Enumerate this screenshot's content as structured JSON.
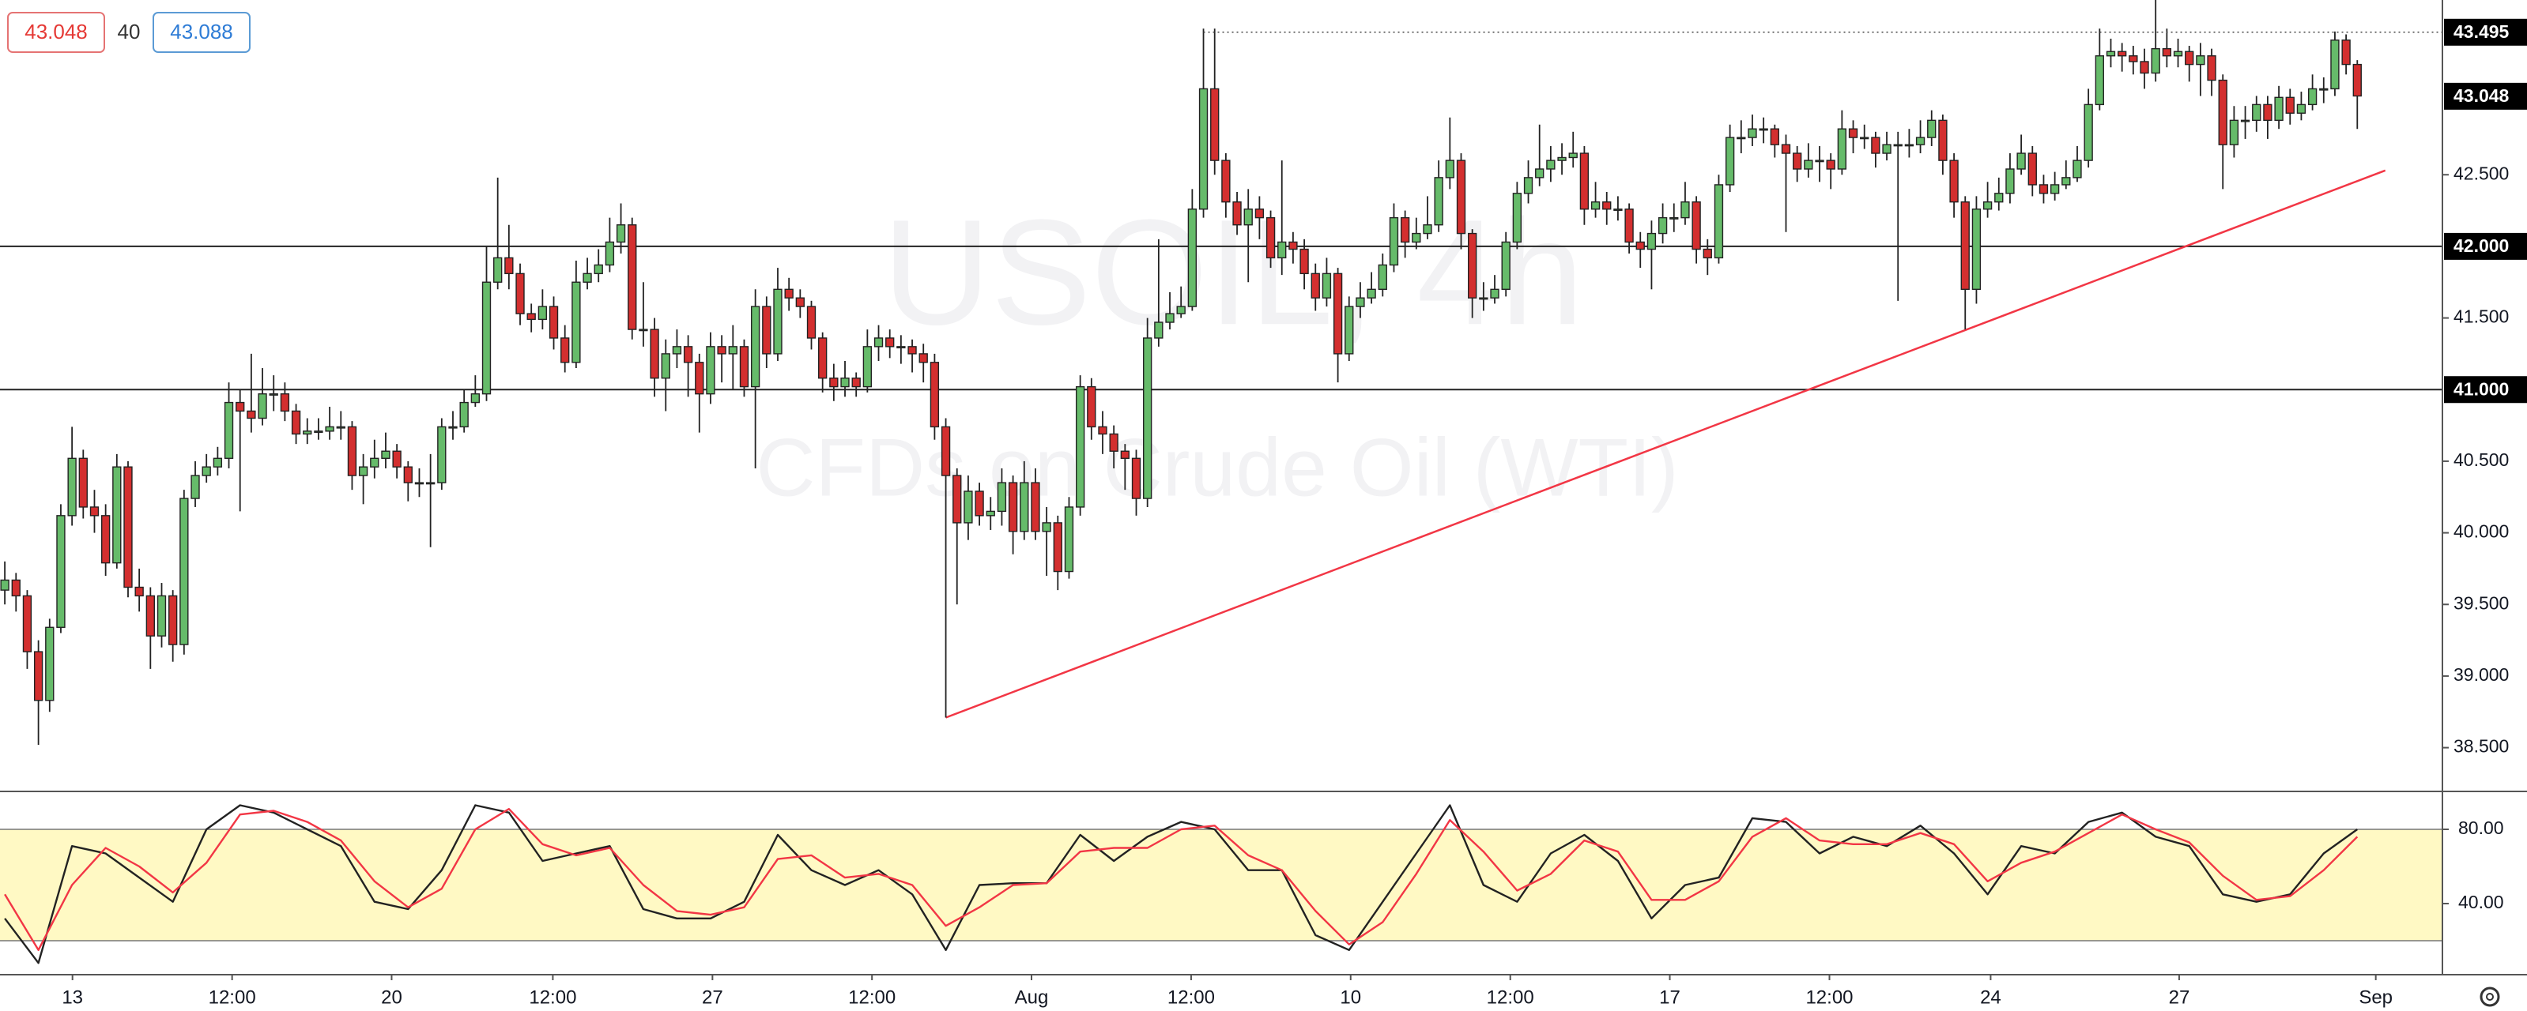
{
  "quote": {
    "bid": 43.048,
    "spread": 40,
    "ask": 43.088
  },
  "chart_data": [
    {
      "type": "candlestick",
      "watermark": "USOIL, 4h",
      "subtitle": "CFDs on Crude Oil (WTI)",
      "up_color": "#66bb6a",
      "down_color": "#d32f2f",
      "wick_color": "#222222",
      "xlim": [
        -0.43,
        217.6
      ],
      "ylim": [
        38.2,
        43.72
      ],
      "yticks": [
        {
          "value": 38.5,
          "label": "38.500"
        },
        {
          "value": 39,
          "label": "39.000"
        },
        {
          "value": 39.5,
          "label": "39.500"
        },
        {
          "value": 40,
          "label": "40.000"
        },
        {
          "value": 40.5,
          "label": "40.500"
        },
        {
          "value": 41.5,
          "label": "41.500"
        },
        {
          "value": 42.5,
          "label": "42.500"
        }
      ],
      "hlines": [
        {
          "value": 42,
          "label": "42.000"
        },
        {
          "value": 41,
          "label": "41.000"
        }
      ],
      "high_line": {
        "value": 43.495,
        "x_start": 107
      },
      "last_price": 43.048,
      "trendline": {
        "x": [
          84,
          212.5
        ],
        "values": [
          38.71,
          42.53
        ],
        "color": "#f23645"
      },
      "open": [
        39.6,
        39.67,
        39.56,
        39.17,
        38.83,
        39.34,
        40.12,
        40.52,
        40.18,
        40.12,
        39.79,
        40.46,
        39.62,
        39.56,
        39.28,
        39.56,
        39.22,
        40.24,
        40.4,
        40.46,
        40.52,
        40.91,
        40.85,
        40.8,
        40.97,
        40.97,
        40.85,
        40.69,
        40.71,
        40.71,
        40.74,
        40.74,
        40.4,
        40.46,
        40.52,
        40.57,
        40.46,
        40.35,
        40.35,
        40.35,
        40.74,
        40.74,
        40.91,
        40.97,
        41.75,
        41.92,
        41.81,
        41.53,
        41.49,
        41.58,
        41.36,
        41.19,
        41.75,
        41.81,
        41.87,
        42.03,
        42.15,
        41.42,
        41.42,
        41.08,
        41.25,
        41.3,
        41.19,
        40.97,
        41.3,
        41.25,
        41.3,
        41.02,
        41.58,
        41.25,
        41.7,
        41.64,
        41.58,
        41.36,
        41.08,
        41.02,
        41.08,
        41.02,
        41.3,
        41.36,
        41.3,
        41.3,
        41.25,
        41.19,
        40.74,
        40.4,
        40.07,
        40.29,
        40.12,
        40.15,
        40.35,
        40.01,
        40.35,
        40.01,
        40.07,
        39.73,
        40.18,
        41.02,
        40.74,
        40.69,
        40.57,
        40.52,
        40.24,
        41.36,
        41.47,
        41.53,
        41.58,
        42.26,
        43.1,
        42.6,
        42.31,
        42.15,
        42.26,
        42.2,
        41.92,
        42.03,
        41.98,
        41.81,
        41.64,
        41.81,
        41.25,
        41.58,
        41.64,
        41.7,
        41.87,
        42.2,
        42.03,
        42.09,
        42.15,
        42.48,
        42.6,
        42.09,
        41.64,
        41.64,
        41.7,
        42.03,
        42.37,
        42.48,
        42.54,
        42.6,
        42.62,
        42.65,
        42.26,
        42.31,
        42.26,
        42.26,
        42.03,
        41.98,
        42.09,
        42.2,
        42.2,
        42.31,
        41.98,
        41.92,
        42.43,
        42.76,
        42.76,
        42.82,
        42.82,
        42.71,
        42.65,
        42.54,
        42.6,
        42.6,
        42.54,
        42.82,
        42.76,
        42.76,
        42.65,
        42.71,
        42.71,
        42.71,
        42.76,
        42.88,
        42.6,
        42.31,
        41.7,
        42.26,
        42.31,
        42.37,
        42.54,
        42.65,
        42.43,
        42.37,
        42.43,
        42.48,
        42.6,
        42.99,
        43.33,
        43.36,
        43.33,
        43.29,
        43.21,
        43.38,
        43.33,
        43.36,
        43.27,
        43.33,
        43.16,
        42.71,
        42.88,
        42.88,
        42.99,
        42.88,
        43.04,
        42.93,
        42.99,
        43.1,
        43.1,
        43.44,
        43.27
      ],
      "high": [
        39.8,
        39.72,
        39.6,
        39.25,
        39.4,
        40.2,
        40.74,
        40.58,
        40.3,
        40.2,
        40.55,
        40.5,
        39.75,
        39.62,
        39.65,
        39.6,
        40.3,
        40.5,
        40.55,
        40.6,
        41.05,
        41.0,
        41.25,
        41.15,
        41.1,
        41.05,
        40.9,
        40.8,
        40.8,
        40.88,
        40.85,
        40.78,
        40.55,
        40.65,
        40.7,
        40.62,
        40.5,
        40.45,
        40.55,
        40.8,
        40.85,
        41.0,
        41.1,
        42.0,
        42.48,
        42.15,
        41.88,
        41.6,
        41.7,
        41.65,
        41.45,
        41.9,
        41.92,
        41.98,
        42.2,
        42.3,
        42.2,
        41.75,
        41.5,
        41.35,
        41.42,
        41.38,
        41.25,
        41.4,
        41.38,
        41.45,
        41.35,
        41.7,
        41.65,
        41.85,
        41.78,
        41.7,
        41.62,
        41.4,
        41.18,
        41.2,
        41.12,
        41.42,
        41.45,
        41.42,
        41.38,
        41.35,
        41.32,
        41.25,
        40.8,
        40.45,
        40.4,
        40.35,
        40.25,
        40.45,
        40.4,
        40.5,
        40.45,
        40.18,
        40.12,
        40.25,
        41.1,
        41.08,
        40.85,
        40.75,
        40.62,
        40.58,
        41.5,
        42.05,
        41.68,
        41.72,
        42.4,
        43.52,
        43.52,
        42.65,
        42.38,
        42.4,
        42.35,
        42.25,
        42.6,
        42.1,
        42.05,
        41.88,
        41.92,
        41.85,
        41.65,
        41.75,
        41.82,
        41.95,
        42.3,
        42.25,
        42.2,
        42.35,
        42.6,
        42.9,
        42.65,
        42.12,
        41.75,
        41.8,
        42.1,
        42.45,
        42.6,
        42.85,
        42.7,
        42.72,
        42.8,
        42.7,
        42.45,
        42.38,
        42.35,
        42.3,
        42.1,
        42.18,
        42.3,
        42.3,
        42.45,
        42.35,
        42.05,
        42.5,
        42.85,
        42.88,
        42.92,
        42.9,
        42.85,
        42.78,
        42.7,
        42.72,
        42.7,
        42.65,
        42.95,
        42.88,
        42.85,
        42.8,
        42.8,
        42.8,
        42.82,
        42.88,
        42.95,
        42.92,
        42.65,
        42.35,
        42.35,
        42.45,
        42.48,
        42.65,
        42.78,
        42.7,
        42.5,
        42.52,
        42.6,
        42.7,
        43.1,
        43.52,
        43.45,
        43.42,
        43.4,
        43.38,
        43.72,
        43.52,
        43.45,
        43.4,
        43.42,
        43.38,
        43.2,
        42.98,
        42.98,
        43.05,
        43.05,
        43.12,
        43.1,
        43.08,
        43.2,
        43.18,
        43.5,
        43.48,
        43.3
      ],
      "low": [
        39.5,
        39.45,
        39.05,
        38.52,
        38.75,
        39.3,
        40.05,
        40.1,
        40.0,
        39.7,
        39.75,
        39.55,
        39.45,
        39.05,
        39.2,
        39.1,
        39.15,
        40.18,
        40.35,
        40.4,
        40.45,
        40.15,
        40.7,
        40.75,
        40.85,
        40.78,
        40.62,
        40.62,
        40.65,
        40.65,
        40.65,
        40.3,
        40.2,
        40.38,
        40.45,
        40.38,
        40.22,
        40.25,
        39.9,
        40.3,
        40.65,
        40.7,
        40.88,
        40.92,
        41.7,
        41.7,
        41.45,
        41.4,
        41.42,
        41.28,
        41.12,
        41.15,
        41.7,
        41.75,
        41.82,
        41.95,
        41.35,
        41.3,
        40.95,
        40.85,
        41.15,
        40.95,
        40.7,
        40.9,
        41.05,
        41.0,
        40.95,
        40.45,
        41.15,
        41.2,
        41.55,
        41.5,
        41.28,
        40.98,
        40.92,
        40.95,
        40.95,
        40.98,
        41.2,
        41.22,
        41.18,
        41.12,
        41.05,
        40.65,
        38.71,
        39.5,
        39.95,
        40.05,
        40.02,
        40.05,
        39.85,
        39.95,
        39.95,
        39.7,
        39.6,
        39.68,
        40.12,
        40.65,
        40.55,
        40.45,
        40.3,
        40.12,
        40.18,
        41.3,
        41.42,
        41.5,
        41.55,
        42.2,
        42.5,
        42.2,
        42.08,
        41.75,
        42.05,
        41.85,
        41.8,
        41.88,
        41.7,
        41.55,
        41.58,
        41.05,
        41.2,
        41.5,
        41.6,
        41.65,
        41.82,
        41.92,
        41.98,
        42.05,
        42.1,
        42.4,
        41.98,
        41.5,
        41.55,
        41.6,
        41.65,
        41.98,
        42.3,
        42.42,
        42.45,
        42.5,
        42.55,
        42.15,
        42.2,
        42.15,
        42.18,
        41.95,
        41.85,
        41.7,
        42.02,
        42.1,
        42.15,
        41.88,
        41.8,
        41.88,
        42.38,
        42.65,
        42.7,
        42.72,
        42.62,
        42.1,
        42.45,
        42.48,
        42.45,
        42.4,
        42.5,
        42.65,
        42.68,
        42.55,
        42.6,
        41.62,
        42.62,
        42.65,
        42.7,
        42.5,
        42.2,
        41.42,
        41.6,
        42.2,
        42.25,
        42.3,
        42.5,
        42.35,
        42.3,
        42.32,
        42.4,
        42.45,
        42.55,
        42.95,
        43.25,
        43.22,
        43.2,
        43.1,
        43.15,
        43.25,
        43.25,
        43.15,
        43.05,
        43.05,
        42.4,
        42.62,
        42.75,
        42.8,
        42.75,
        42.82,
        42.85,
        42.88,
        42.95,
        43.0,
        43.05,
        43.2,
        42.82
      ],
      "close": [
        39.67,
        39.56,
        39.17,
        38.83,
        39.34,
        40.12,
        40.52,
        40.18,
        40.12,
        39.79,
        40.46,
        39.62,
        39.56,
        39.28,
        39.56,
        39.22,
        40.24,
        40.4,
        40.46,
        40.52,
        40.91,
        40.85,
        40.8,
        40.97,
        40.97,
        40.85,
        40.69,
        40.71,
        40.71,
        40.74,
        40.74,
        40.4,
        40.46,
        40.52,
        40.57,
        40.46,
        40.35,
        40.35,
        40.35,
        40.74,
        40.74,
        40.91,
        40.97,
        41.75,
        41.92,
        41.81,
        41.53,
        41.49,
        41.58,
        41.36,
        41.19,
        41.75,
        41.81,
        41.87,
        42.03,
        42.15,
        41.42,
        41.42,
        41.08,
        41.25,
        41.3,
        41.19,
        40.97,
        41.3,
        41.25,
        41.3,
        41.02,
        41.58,
        41.25,
        41.7,
        41.64,
        41.58,
        41.36,
        41.08,
        41.02,
        41.08,
        41.02,
        41.3,
        41.36,
        41.3,
        41.3,
        41.25,
        41.19,
        40.74,
        40.4,
        40.07,
        40.29,
        40.12,
        40.15,
        40.35,
        40.01,
        40.35,
        40.01,
        40.07,
        39.73,
        40.18,
        41.02,
        40.74,
        40.69,
        40.57,
        40.52,
        40.24,
        41.36,
        41.47,
        41.53,
        41.58,
        42.26,
        43.1,
        42.6,
        42.31,
        42.15,
        42.26,
        42.2,
        41.92,
        42.03,
        41.98,
        41.81,
        41.64,
        41.81,
        41.25,
        41.58,
        41.64,
        41.7,
        41.87,
        42.2,
        42.03,
        42.09,
        42.15,
        42.48,
        42.6,
        42.09,
        41.64,
        41.64,
        41.7,
        42.03,
        42.37,
        42.48,
        42.54,
        42.6,
        42.62,
        42.65,
        42.26,
        42.31,
        42.26,
        42.26,
        42.03,
        41.98,
        42.09,
        42.2,
        42.2,
        42.31,
        41.98,
        41.92,
        42.43,
        42.76,
        42.76,
        42.82,
        42.82,
        42.71,
        42.65,
        42.54,
        42.6,
        42.6,
        42.54,
        42.82,
        42.76,
        42.76,
        42.65,
        42.71,
        42.71,
        42.71,
        42.76,
        42.88,
        42.6,
        42.31,
        41.7,
        42.26,
        42.31,
        42.37,
        42.54,
        42.65,
        42.43,
        42.37,
        42.43,
        42.48,
        42.6,
        42.99,
        43.33,
        43.36,
        43.33,
        43.29,
        43.21,
        43.38,
        43.33,
        43.36,
        43.27,
        43.33,
        43.16,
        42.71,
        42.88,
        42.88,
        42.99,
        42.88,
        43.04,
        42.93,
        42.99,
        43.1,
        43.1,
        43.44,
        43.27,
        43.05
      ]
    },
    {
      "type": "line",
      "xlim": [
        -0.43,
        217.6
      ],
      "ylim": [
        0,
        100
      ],
      "band": [
        20,
        80
      ],
      "band_color": "#fff9c4",
      "yticks": [
        {
          "value": 80,
          "label": "80.00"
        },
        {
          "value": 40,
          "label": "40.00"
        }
      ],
      "xticks": [
        {
          "value": 6.04,
          "label": "13"
        },
        {
          "value": 20.29,
          "label": "12:00"
        },
        {
          "value": 34.53,
          "label": "20"
        },
        {
          "value": 48.92,
          "label": "12:00"
        },
        {
          "value": 63.17,
          "label": "27"
        },
        {
          "value": 77.41,
          "label": "12:00"
        },
        {
          "value": 91.65,
          "label": "Aug"
        },
        {
          "value": 105.9,
          "label": "12:00"
        },
        {
          "value": 120.14,
          "label": "10"
        },
        {
          "value": 134.39,
          "label": "12:00"
        },
        {
          "value": 148.63,
          "label": "17"
        },
        {
          "value": 162.88,
          "label": "12:00"
        },
        {
          "value": 177.27,
          "label": "24"
        },
        {
          "value": 194.1,
          "label": "27"
        },
        {
          "value": 211.65,
          "label": "Sep"
        }
      ],
      "x": [
        0,
        3,
        6,
        9,
        12,
        15,
        18,
        21,
        24,
        27,
        30,
        33,
        36,
        39,
        42,
        45,
        48,
        51,
        54,
        57,
        60,
        63,
        66,
        69,
        72,
        75,
        78,
        81,
        84,
        87,
        90,
        93,
        96,
        99,
        102,
        105,
        108,
        111,
        114,
        117,
        120,
        123,
        126,
        129,
        132,
        135,
        138,
        141,
        144,
        147,
        150,
        153,
        156,
        159,
        162,
        165,
        168,
        171,
        174,
        177,
        180,
        183,
        186,
        189,
        192,
        195,
        198,
        201,
        204,
        207,
        210
      ],
      "series": [
        {
          "color": "#222222",
          "values": [
            32,
            8,
            71,
            67,
            54,
            41,
            80,
            93,
            89,
            80,
            71,
            41,
            37,
            58,
            93,
            89,
            63,
            67,
            71,
            37,
            32,
            32,
            41,
            77,
            58,
            50,
            58,
            45,
            15,
            50,
            51,
            51,
            77,
            63,
            76,
            84,
            80,
            58,
            58,
            23,
            15,
            41,
            67,
            93,
            50,
            41,
            67,
            77,
            63,
            32,
            50,
            54,
            86,
            84,
            67,
            76,
            71,
            82,
            67,
            45,
            71,
            67,
            84,
            89,
            76,
            71,
            45,
            41,
            45,
            67,
            80
          ]
        },
        {
          "color": "#f23645",
          "values": [
            45,
            15,
            50,
            70,
            60,
            46,
            62,
            88,
            90,
            84,
            74,
            52,
            38,
            48,
            80,
            91,
            72,
            66,
            70,
            50,
            36,
            34,
            38,
            64,
            66,
            54,
            56,
            50,
            28,
            38,
            50,
            51,
            68,
            70,
            70,
            80,
            82,
            66,
            58,
            36,
            18,
            30,
            56,
            85,
            68,
            47,
            56,
            74,
            68,
            42,
            42,
            52,
            76,
            86,
            74,
            72,
            72,
            78,
            72,
            52,
            62,
            68,
            78,
            88,
            80,
            73,
            55,
            42,
            44,
            58,
            76
          ]
        }
      ]
    }
  ]
}
